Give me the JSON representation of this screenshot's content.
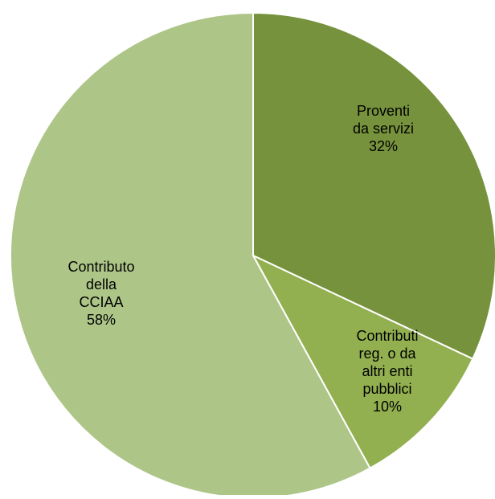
{
  "chart_data": {
    "type": "pie",
    "title": "",
    "start_angle_deg": 0,
    "direction": "clockwise",
    "legend": "none",
    "slices": [
      {
        "label": "Proventi da servizi",
        "label_lines": [
          "Proventi",
          "da servizi"
        ],
        "value": 32,
        "display": "32%",
        "color": "#76923C"
      },
      {
        "label": "Contributi reg. o da altri enti pubblici",
        "label_lines": [
          "Contributi",
          "reg. o da",
          "altri enti",
          "pubblici"
        ],
        "value": 10,
        "display": "10%",
        "color": "#92B050"
      },
      {
        "label": "Contributo della CCIAA",
        "label_lines": [
          "Contributo",
          "della",
          "CCIAA"
        ],
        "value": 58,
        "display": "58%",
        "color": "#ADC688"
      }
    ]
  }
}
